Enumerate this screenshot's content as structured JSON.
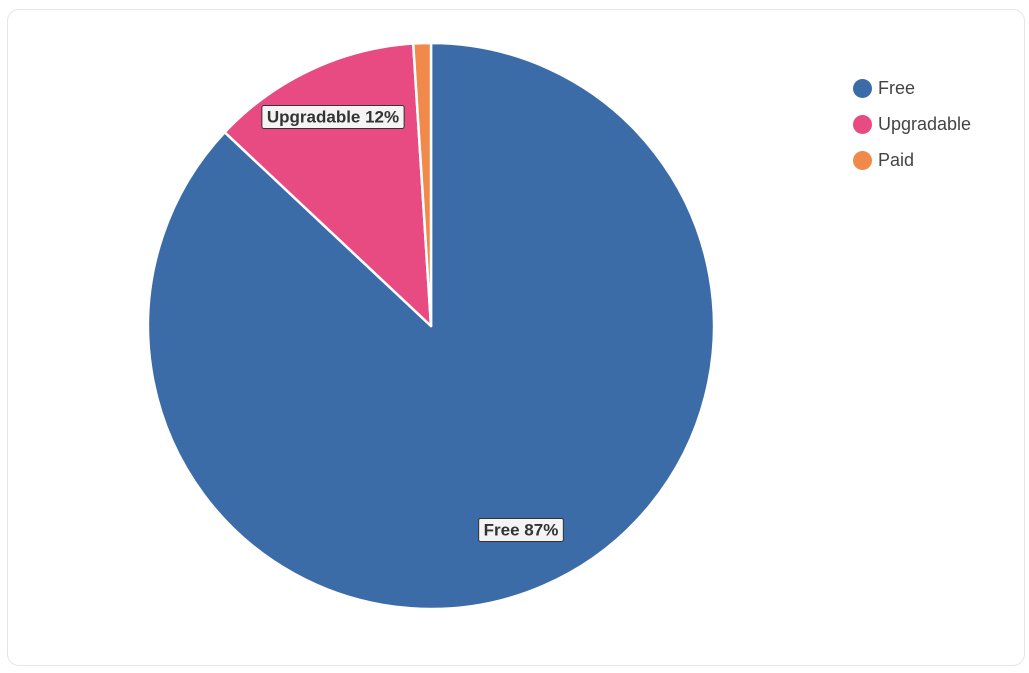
{
  "chart_data": {
    "type": "pie",
    "slices": [
      {
        "name": "Free",
        "value": 87,
        "label": "Free 87%",
        "color": "#3b6ca8"
      },
      {
        "name": "Upgradable",
        "value": 12,
        "label": "Upgradable 12%",
        "color": "#e84b82"
      },
      {
        "name": "Paid",
        "value": 1,
        "label": "",
        "color": "#f0894a"
      }
    ],
    "legend_placement": "top-right",
    "start_angle": "12 o'clock",
    "direction": "clockwise"
  },
  "legend": {
    "items": [
      {
        "label": "Free",
        "color": "#3b6ca8"
      },
      {
        "label": "Upgradable",
        "color": "#e84b82"
      },
      {
        "label": "Paid",
        "color": "#f0894a"
      }
    ]
  }
}
